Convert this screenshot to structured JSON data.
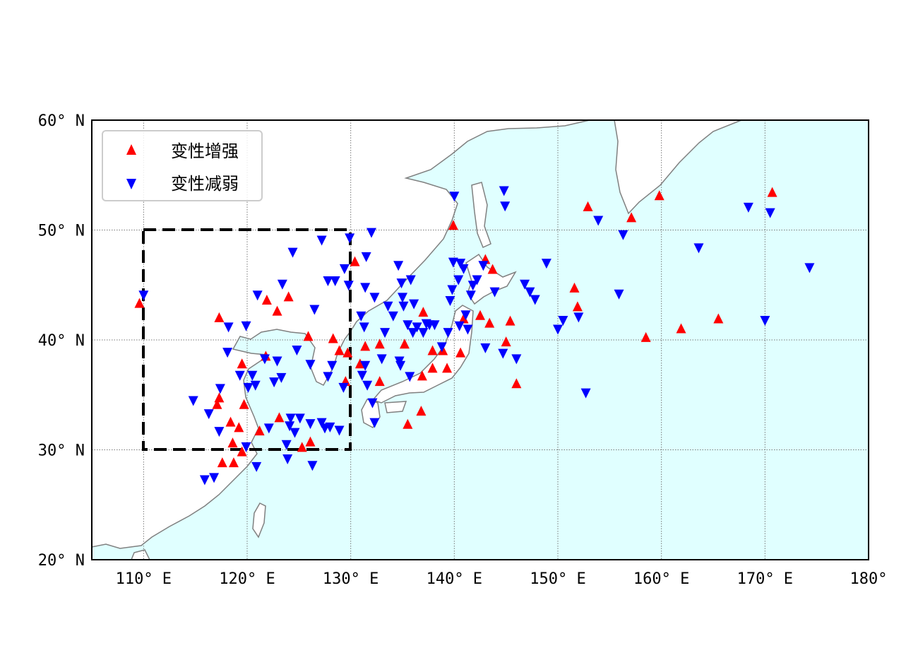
{
  "chart_data": {
    "type": "scatter",
    "projection": "equirectangular",
    "xlim": [
      105,
      180
    ],
    "ylim": [
      20,
      60
    ],
    "grid": true,
    "x_ticks": [
      110,
      120,
      130,
      140,
      150,
      160,
      170,
      180
    ],
    "y_ticks": [
      20,
      30,
      40,
      50,
      60
    ],
    "x_tick_labels": [
      "110° E",
      "120° E",
      "130° E",
      "140° E",
      "150° E",
      "160° E",
      "170° E",
      "180°"
    ],
    "y_tick_labels": [
      "20° N",
      "30° N",
      "40° N",
      "50° N",
      "60° N"
    ],
    "colors": {
      "ocean": "#e0ffff",
      "land": "#ffffff",
      "coast": "#808080",
      "increase": "#ff0000",
      "decrease": "#0000ff"
    },
    "region_box": {
      "lon": [
        110,
        130
      ],
      "lat": [
        30,
        50
      ],
      "style": "dashed"
    },
    "legend_position": "top-left",
    "series": [
      {
        "name": "变性增强",
        "marker": "triangle-up",
        "color": "#ff0000",
        "points": [
          [
            109.6,
            43.3
          ],
          [
            117.3,
            42.0
          ],
          [
            121.9,
            43.6
          ],
          [
            122.9,
            42.6
          ],
          [
            124.0,
            43.9
          ],
          [
            121.8,
            38.5
          ],
          [
            119.5,
            37.8
          ],
          [
            117.3,
            34.7
          ],
          [
            117.1,
            34.1
          ],
          [
            119.7,
            34.1
          ],
          [
            118.4,
            32.5
          ],
          [
            119.2,
            32.0
          ],
          [
            118.6,
            30.6
          ],
          [
            117.6,
            28.8
          ],
          [
            118.7,
            28.8
          ],
          [
            119.5,
            29.8
          ],
          [
            121.2,
            31.7
          ],
          [
            123.1,
            32.9
          ],
          [
            125.3,
            30.2
          ],
          [
            126.1,
            30.7
          ],
          [
            125.9,
            40.3
          ],
          [
            128.3,
            40.1
          ],
          [
            128.9,
            39.0
          ],
          [
            129.5,
            36.2
          ],
          [
            129.7,
            38.8
          ],
          [
            130.4,
            47.1
          ],
          [
            130.9,
            37.8
          ],
          [
            131.4,
            39.4
          ],
          [
            132.8,
            36.2
          ],
          [
            132.8,
            39.6
          ],
          [
            135.2,
            39.6
          ],
          [
            135.5,
            32.3
          ],
          [
            136.8,
            33.5
          ],
          [
            136.9,
            36.7
          ],
          [
            137.0,
            42.5
          ],
          [
            137.9,
            39.0
          ],
          [
            137.9,
            37.4
          ],
          [
            139.3,
            37.4
          ],
          [
            138.9,
            39.0
          ],
          [
            139.9,
            50.4
          ],
          [
            140.6,
            38.8
          ],
          [
            140.9,
            41.9
          ],
          [
            142.5,
            42.2
          ],
          [
            143.0,
            47.3
          ],
          [
            143.7,
            46.4
          ],
          [
            143.4,
            41.5
          ],
          [
            145.0,
            39.8
          ],
          [
            145.4,
            41.7
          ],
          [
            146.0,
            36.0
          ],
          [
            151.6,
            44.7
          ],
          [
            151.9,
            43.0
          ],
          [
            152.9,
            52.1
          ],
          [
            157.1,
            51.1
          ],
          [
            159.8,
            53.1
          ],
          [
            158.5,
            40.2
          ],
          [
            161.9,
            41.0
          ],
          [
            165.5,
            41.9
          ],
          [
            170.7,
            53.4
          ]
        ]
      },
      {
        "name": "变性减弱",
        "marker": "triangle-down",
        "color": "#0000ff",
        "points": [
          [
            110.0,
            44.1
          ],
          [
            114.8,
            34.5
          ],
          [
            116.3,
            33.3
          ],
          [
            116.8,
            27.5
          ],
          [
            115.9,
            27.3
          ],
          [
            117.3,
            31.7
          ],
          [
            117.4,
            35.6
          ],
          [
            118.2,
            41.2
          ],
          [
            118.1,
            38.9
          ],
          [
            119.9,
            41.3
          ],
          [
            121.0,
            44.1
          ],
          [
            119.3,
            36.8
          ],
          [
            120.1,
            35.7
          ],
          [
            120.5,
            36.8
          ],
          [
            120.8,
            35.9
          ],
          [
            119.9,
            30.3
          ],
          [
            120.9,
            28.5
          ],
          [
            122.1,
            32.0
          ],
          [
            121.7,
            38.3
          ],
          [
            122.9,
            38.1
          ],
          [
            122.6,
            36.2
          ],
          [
            123.3,
            36.6
          ],
          [
            123.4,
            45.1
          ],
          [
            124.4,
            48.0
          ],
          [
            124.8,
            39.1
          ],
          [
            124.2,
            32.9
          ],
          [
            124.1,
            32.2
          ],
          [
            124.6,
            31.6
          ],
          [
            123.8,
            30.5
          ],
          [
            123.9,
            29.2
          ],
          [
            125.1,
            32.9
          ],
          [
            126.1,
            37.8
          ],
          [
            126.5,
            42.8
          ],
          [
            126.1,
            32.4
          ],
          [
            126.3,
            28.6
          ],
          [
            127.2,
            49.1
          ],
          [
            127.8,
            45.4
          ],
          [
            128.5,
            45.4
          ],
          [
            128.2,
            37.7
          ],
          [
            127.8,
            36.7
          ],
          [
            127.2,
            32.5
          ],
          [
            127.5,
            32.0
          ],
          [
            128.0,
            32.1
          ],
          [
            128.9,
            31.8
          ],
          [
            129.3,
            35.7
          ],
          [
            129.4,
            46.5
          ],
          [
            129.9,
            49.3
          ],
          [
            129.8,
            45.0
          ],
          [
            131.0,
            42.2
          ],
          [
            131.3,
            41.2
          ],
          [
            131.4,
            37.7
          ],
          [
            131.1,
            36.8
          ],
          [
            131.6,
            35.9
          ],
          [
            132.1,
            34.3
          ],
          [
            132.3,
            32.5
          ],
          [
            132.0,
            49.8
          ],
          [
            131.5,
            47.6
          ],
          [
            131.4,
            44.8
          ],
          [
            132.3,
            43.9
          ],
          [
            133.0,
            38.3
          ],
          [
            133.3,
            40.7
          ],
          [
            133.6,
            43.1
          ],
          [
            134.1,
            42.2
          ],
          [
            134.6,
            46.8
          ],
          [
            134.9,
            45.2
          ],
          [
            135.0,
            43.9
          ],
          [
            135.1,
            43.1
          ],
          [
            135.8,
            45.5
          ],
          [
            136.1,
            43.3
          ],
          [
            136.4,
            41.2
          ],
          [
            137.0,
            40.7
          ],
          [
            137.3,
            41.5
          ],
          [
            134.7,
            38.1
          ],
          [
            134.8,
            37.7
          ],
          [
            135.7,
            36.7
          ],
          [
            135.5,
            41.4
          ],
          [
            136.0,
            40.7
          ],
          [
            137.6,
            41.4
          ],
          [
            138.1,
            41.4
          ],
          [
            138.8,
            39.4
          ],
          [
            139.4,
            40.7
          ],
          [
            140.0,
            53.1
          ],
          [
            139.6,
            43.6
          ],
          [
            139.9,
            47.1
          ],
          [
            140.6,
            47.0
          ],
          [
            140.9,
            46.5
          ],
          [
            141.1,
            42.3
          ],
          [
            141.3,
            41.0
          ],
          [
            141.6,
            44.1
          ],
          [
            141.8,
            45.0
          ],
          [
            142.2,
            45.5
          ],
          [
            142.8,
            46.8
          ],
          [
            143.0,
            39.3
          ],
          [
            143.9,
            44.4
          ],
          [
            144.7,
            38.8
          ],
          [
            144.9,
            52.2
          ],
          [
            144.8,
            53.6
          ],
          [
            146.0,
            38.3
          ],
          [
            146.8,
            45.1
          ],
          [
            147.3,
            44.4
          ],
          [
            147.8,
            43.7
          ],
          [
            148.9,
            47.0
          ],
          [
            150.0,
            41.0
          ],
          [
            150.5,
            41.8
          ],
          [
            152.0,
            42.1
          ],
          [
            152.7,
            35.2
          ],
          [
            153.9,
            50.9
          ],
          [
            155.9,
            44.2
          ],
          [
            156.3,
            49.6
          ],
          [
            163.6,
            48.4
          ],
          [
            168.4,
            52.1
          ],
          [
            170.5,
            51.6
          ],
          [
            170.0,
            41.8
          ],
          [
            174.3,
            46.6
          ],
          [
            139.8,
            44.6
          ],
          [
            140.4,
            45.5
          ],
          [
            140.5,
            41.3
          ]
        ]
      }
    ]
  }
}
